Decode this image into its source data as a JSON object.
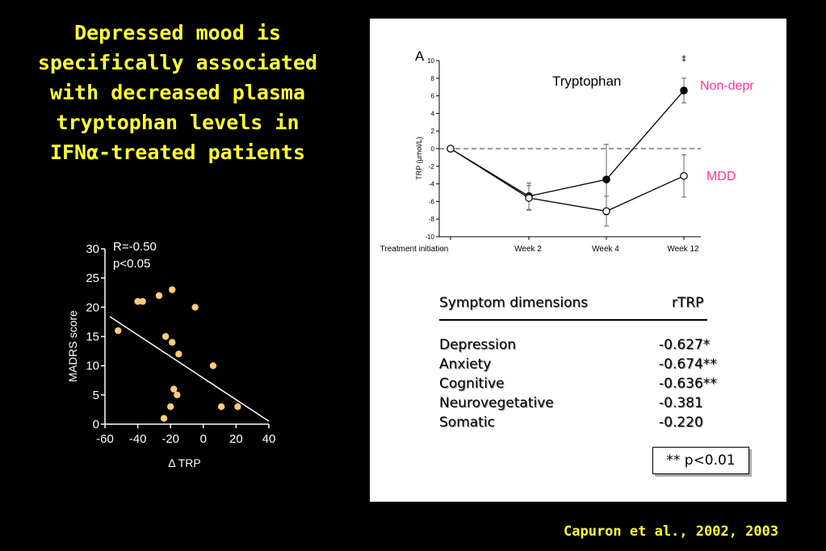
{
  "title_lines": [
    "Depressed mood is",
    "specifically associated",
    "with decreased plasma",
    "tryptophan levels in",
    "IFNα-treated patients"
  ],
  "citation": "Capuron et al., 2002, 2003",
  "colors": {
    "title": "#ffff33",
    "points": "#ffcc77",
    "nondepr": "#ff3399",
    "mdd": "#ff3399"
  },
  "chart_data": [
    {
      "type": "scatter",
      "xlabel": "Δ TRP",
      "ylabel": "MADRS score",
      "xlim": [
        -60,
        40
      ],
      "ylim": [
        0,
        30
      ],
      "xticks": [
        -60,
        -40,
        -20,
        0,
        20,
        40
      ],
      "yticks": [
        0,
        5,
        10,
        15,
        20,
        25,
        30
      ],
      "annotations": [
        "R=-0.50",
        "p<0.05"
      ],
      "points": [
        {
          "x": -52,
          "y": 16
        },
        {
          "x": -40,
          "y": 21
        },
        {
          "x": -37,
          "y": 21
        },
        {
          "x": -27,
          "y": 22
        },
        {
          "x": -19,
          "y": 23
        },
        {
          "x": -5,
          "y": 20
        },
        {
          "x": -23,
          "y": 15
        },
        {
          "x": -19,
          "y": 14
        },
        {
          "x": -15,
          "y": 12
        },
        {
          "x": 6,
          "y": 10
        },
        {
          "x": -18,
          "y": 6
        },
        {
          "x": -16,
          "y": 5
        },
        {
          "x": -20,
          "y": 3
        },
        {
          "x": -24,
          "y": 1
        },
        {
          "x": 11,
          "y": 3
        },
        {
          "x": 21,
          "y": 3
        }
      ],
      "fit_line": {
        "x": [
          -57,
          40
        ],
        "y": [
          18.4,
          0.5
        ]
      }
    },
    {
      "type": "line",
      "panel_letter": "A",
      "label": "Tryptophan",
      "ylabel": "TRP (μmol/L)",
      "categories": [
        "Treatment initiation",
        "Week 2",
        "Week 4",
        "Week 12"
      ],
      "ylim": [
        -10,
        10
      ],
      "yticks": [
        -10,
        -8,
        -6,
        -4,
        -2,
        0,
        2,
        4,
        6,
        8,
        10
      ],
      "baseline": 0,
      "significance_marker": "‡",
      "series": [
        {
          "name": "Non-depr",
          "marker": "filled",
          "values": [
            0,
            -5.4,
            -3.5,
            6.6
          ],
          "err": [
            0,
            1.5,
            4.0,
            1.4
          ]
        },
        {
          "name": "MDD",
          "marker": "open",
          "values": [
            0,
            -5.6,
            -7.1,
            -3.1
          ],
          "err": [
            0,
            1.4,
            1.7,
            2.4
          ]
        }
      ]
    }
  ],
  "table": {
    "headers": [
      "Symptom dimensions",
      "rTRP"
    ],
    "rows": [
      {
        "dimension": "Depression",
        "r": "-0.627*"
      },
      {
        "dimension": "Anxiety",
        "r": "-0.674**"
      },
      {
        "dimension": "Cognitive",
        "r": "-0.636**"
      },
      {
        "dimension": "Neurovegetative",
        "r": "-0.381"
      },
      {
        "dimension": "Somatic",
        "r": "-0.220"
      }
    ],
    "note": "** p<0.01"
  }
}
